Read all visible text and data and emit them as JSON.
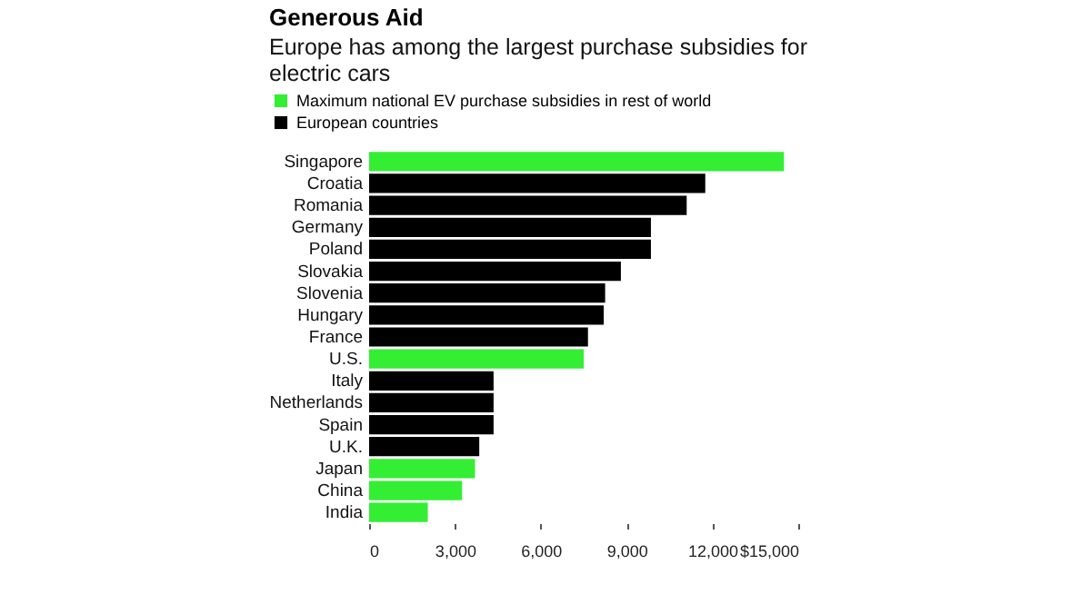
{
  "chart_data": {
    "type": "bar",
    "orientation": "horizontal",
    "title": "Generous Aid",
    "subtitle": "Europe has among the largest purchase subsidies for electric cars",
    "categories": [
      "Singapore",
      "Croatia",
      "Romania",
      "Germany",
      "Poland",
      "Slovakia",
      "Slovenia",
      "Hungary",
      "France",
      "U.S.",
      "Italy",
      "Netherlands",
      "Spain",
      "U.K.",
      "Japan",
      "China",
      "India"
    ],
    "series": [
      {
        "name": "Maximum national EV purchase subsidies in rest of world",
        "color": "#33ee33",
        "values": [
          14500,
          null,
          null,
          null,
          null,
          null,
          null,
          null,
          null,
          7500,
          null,
          null,
          null,
          null,
          3700,
          3250,
          2050
        ]
      },
      {
        "name": "European countries",
        "color": "#000000",
        "values": [
          null,
          11750,
          11100,
          9850,
          9850,
          8800,
          8250,
          8200,
          7650,
          null,
          4350,
          4350,
          4350,
          3850,
          null,
          null,
          null
        ]
      }
    ],
    "xlim": [
      0,
      15000
    ],
    "xticks": [
      0,
      {
        "value": 3000,
        "label": "3,000"
      },
      {
        "value": 6000,
        "label": "6,000"
      },
      {
        "value": 9000,
        "label": "9,000"
      },
      {
        "value": 12000,
        "label": "12,000"
      },
      {
        "value": 15000,
        "label": "$15,000"
      }
    ],
    "legend": "top left"
  }
}
